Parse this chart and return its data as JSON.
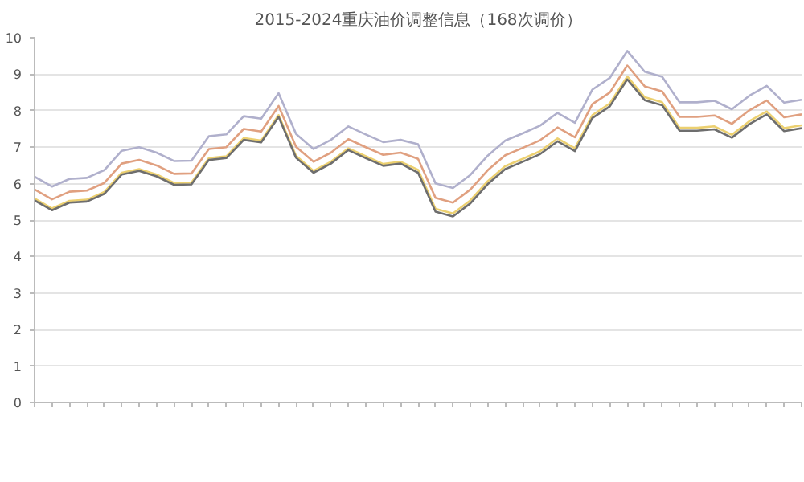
{
  "chart_data": {
    "type": "line",
    "title": "2015-2024重庆油价调整信息（168次调价）",
    "categories": [
      null,
      null,
      null,
      null,
      null,
      null,
      null,
      null,
      null,
      null,
      null,
      null,
      null,
      null,
      null,
      null,
      null,
      null,
      null,
      null,
      null,
      null,
      null,
      null,
      null,
      null,
      null,
      null,
      null,
      null,
      null,
      null,
      null,
      null,
      null,
      null,
      null,
      null,
      null,
      null,
      null,
      null,
      null,
      null,
      null
    ],
    "series": [
      {
        "color": "#b0b0cc",
        "values": [
          6.19,
          5.92,
          6.13,
          6.16,
          6.37,
          6.9,
          7.0,
          6.85,
          6.62,
          6.63,
          7.3,
          7.35,
          7.85,
          7.78,
          8.48,
          7.36,
          6.95,
          7.2,
          7.57,
          7.35,
          7.14,
          7.2,
          7.08,
          6.01,
          5.88,
          6.24,
          6.77,
          7.18,
          7.38,
          7.59,
          7.94,
          7.67,
          8.58,
          8.9,
          9.64,
          9.07,
          8.93,
          8.23,
          8.23,
          8.27,
          8.04,
          8.41,
          8.68,
          8.22,
          8.3
        ]
      },
      {
        "color": "#e0a080",
        "values": [
          5.84,
          5.57,
          5.78,
          5.81,
          6.02,
          6.55,
          6.65,
          6.5,
          6.27,
          6.28,
          6.95,
          7.0,
          7.5,
          7.43,
          8.13,
          7.01,
          6.6,
          6.85,
          7.22,
          7.0,
          6.79,
          6.85,
          6.68,
          5.61,
          5.48,
          5.84,
          6.37,
          6.78,
          6.98,
          7.19,
          7.54,
          7.27,
          8.18,
          8.5,
          9.24,
          8.67,
          8.53,
          7.83,
          7.83,
          7.87,
          7.64,
          8.01,
          8.28,
          7.82,
          7.9
        ]
      },
      {
        "color": "#ecd070",
        "values": [
          5.59,
          5.32,
          5.53,
          5.56,
          5.77,
          6.3,
          6.4,
          6.25,
          6.02,
          6.03,
          6.7,
          6.75,
          7.25,
          7.18,
          7.88,
          6.76,
          6.35,
          6.6,
          6.97,
          6.75,
          6.54,
          6.6,
          6.38,
          5.31,
          5.18,
          5.54,
          6.07,
          6.48,
          6.68,
          6.89,
          7.24,
          6.97,
          7.88,
          8.2,
          8.94,
          8.37,
          8.23,
          7.53,
          7.53,
          7.57,
          7.34,
          7.71,
          7.98,
          7.52,
          7.6
        ]
      },
      {
        "color": "#6e6e6e",
        "values": [
          5.54,
          5.27,
          5.48,
          5.51,
          5.72,
          6.25,
          6.35,
          6.2,
          5.97,
          5.98,
          6.65,
          6.7,
          7.2,
          7.13,
          7.83,
          6.71,
          6.3,
          6.55,
          6.92,
          6.7,
          6.49,
          6.55,
          6.3,
          5.23,
          5.1,
          5.46,
          5.99,
          6.4,
          6.6,
          6.81,
          7.16,
          6.89,
          7.8,
          8.12,
          8.86,
          8.29,
          8.15,
          7.45,
          7.45,
          7.49,
          7.26,
          7.63,
          7.9,
          7.44,
          7.52
        ]
      }
    ],
    "ylim": [
      0,
      10
    ],
    "yticks": [
      0,
      1,
      2,
      3,
      4,
      5,
      6,
      7,
      8,
      9,
      10
    ],
    "grid": "y",
    "tick_labels": "y",
    "marker": "none",
    "line_style": "solid"
  }
}
